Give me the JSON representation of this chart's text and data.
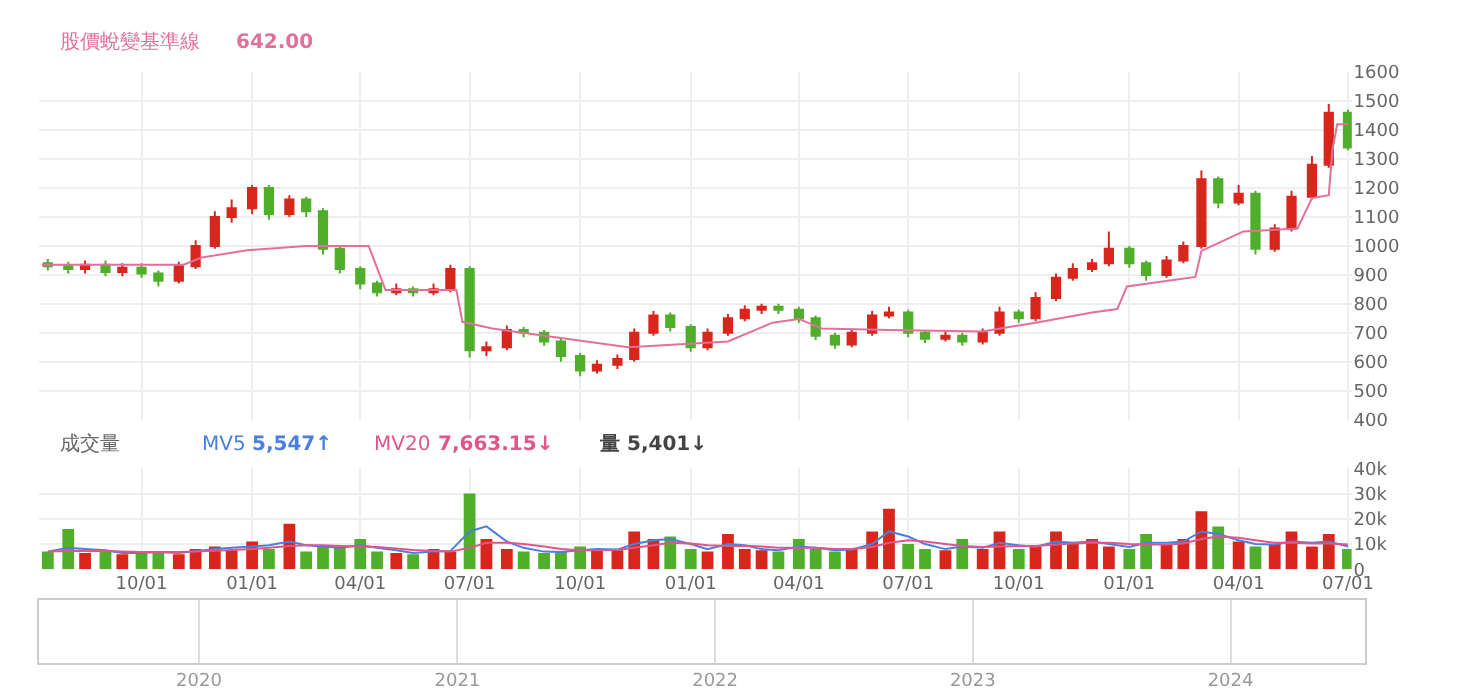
{
  "chart_data": [
    {
      "type": "candlestick",
      "tick_labels": "y",
      "grid": true,
      "legend": "top left",
      "xlim": [
        "2021-07-08",
        "2024-07-04"
      ],
      "xticks": [
        {
          "value": "2021-10-01",
          "label": null
        },
        {
          "value": "2022-01-01",
          "label": null
        },
        {
          "value": "2022-04-01",
          "label": null
        },
        {
          "value": "2022-07-01",
          "label": null
        },
        {
          "value": "2022-10-01",
          "label": null
        },
        {
          "value": "2023-01-01",
          "label": null
        },
        {
          "value": "2023-04-01",
          "label": null
        },
        {
          "value": "2023-07-01",
          "label": null
        },
        {
          "value": "2023-10-01",
          "label": null
        },
        {
          "value": "2024-01-01",
          "label": null
        },
        {
          "value": "2024-04-01",
          "label": null
        },
        {
          "value": "2024-07-01",
          "label": null
        }
      ],
      "ylim": [
        400,
        1600
      ],
      "yticks": [
        400,
        500,
        600,
        700,
        800,
        900,
        1000,
        1100,
        1200,
        1300,
        1400,
        1500,
        1600
      ],
      "x": [
        "2021-07-15",
        "2021-08-01",
        "2021-08-15",
        "2021-09-01",
        "2021-09-15",
        "2021-10-01",
        "2021-10-15",
        "2021-11-01",
        "2021-11-15",
        "2021-12-01",
        "2021-12-15",
        "2022-01-01",
        "2022-01-15",
        "2022-02-01",
        "2022-02-15",
        "2022-03-01",
        "2022-03-15",
        "2022-04-01",
        "2022-04-15",
        "2022-05-01",
        "2022-05-15",
        "2022-06-01",
        "2022-06-15",
        "2022-07-01",
        "2022-07-15",
        "2022-08-01",
        "2022-08-15",
        "2022-09-01",
        "2022-09-15",
        "2022-10-01",
        "2022-10-15",
        "2022-11-01",
        "2022-11-15",
        "2022-12-01",
        "2022-12-15",
        "2023-01-01",
        "2023-01-15",
        "2023-02-01",
        "2023-02-15",
        "2023-03-01",
        "2023-03-15",
        "2023-04-01",
        "2023-04-15",
        "2023-05-01",
        "2023-05-15",
        "2023-06-01",
        "2023-06-15",
        "2023-07-01",
        "2023-07-15",
        "2023-08-01",
        "2023-08-15",
        "2023-09-01",
        "2023-09-15",
        "2023-10-01",
        "2023-10-15",
        "2023-11-01",
        "2023-11-15",
        "2023-12-01",
        "2023-12-15",
        "2024-01-01",
        "2024-01-15",
        "2024-02-01",
        "2024-02-15",
        "2024-03-01",
        "2024-03-15",
        "2024-04-01",
        "2024-04-15",
        "2024-05-01",
        "2024-05-15",
        "2024-06-01",
        "2024-06-15",
        "2024-07-01"
      ],
      "ohlc": [
        [
          940,
          955,
          915,
          930
        ],
        [
          930,
          945,
          905,
          920
        ],
        [
          920,
          950,
          905,
          935
        ],
        [
          935,
          950,
          895,
          910
        ],
        [
          910,
          940,
          895,
          925
        ],
        [
          925,
          940,
          890,
          905
        ],
        [
          905,
          915,
          860,
          880
        ],
        [
          880,
          945,
          870,
          930
        ],
        [
          930,
          1020,
          920,
          1000
        ],
        [
          1000,
          1120,
          990,
          1100
        ],
        [
          1100,
          1160,
          1080,
          1130
        ],
        [
          1130,
          1210,
          1110,
          1200
        ],
        [
          1200,
          1210,
          1090,
          1110
        ],
        [
          1110,
          1175,
          1100,
          1160
        ],
        [
          1160,
          1170,
          1100,
          1120
        ],
        [
          1120,
          1130,
          970,
          990
        ],
        [
          990,
          1000,
          905,
          920
        ],
        [
          920,
          930,
          850,
          870
        ],
        [
          870,
          880,
          825,
          840
        ],
        [
          840,
          870,
          830,
          850
        ],
        [
          850,
          860,
          825,
          840
        ],
        [
          840,
          870,
          830,
          850
        ],
        [
          850,
          935,
          840,
          920
        ],
        [
          920,
          930,
          615,
          640
        ],
        [
          640,
          670,
          620,
          650
        ],
        [
          650,
          725,
          640,
          710
        ],
        [
          710,
          720,
          685,
          700
        ],
        [
          700,
          710,
          655,
          670
        ],
        [
          670,
          680,
          600,
          620
        ],
        [
          620,
          630,
          550,
          570
        ],
        [
          570,
          605,
          560,
          590
        ],
        [
          590,
          625,
          575,
          610
        ],
        [
          610,
          715,
          600,
          700
        ],
        [
          700,
          775,
          690,
          760
        ],
        [
          760,
          770,
          705,
          720
        ],
        [
          720,
          730,
          635,
          650
        ],
        [
          650,
          715,
          640,
          700
        ],
        [
          700,
          765,
          690,
          750
        ],
        [
          750,
          795,
          740,
          780
        ],
        [
          780,
          800,
          765,
          790
        ],
        [
          790,
          800,
          765,
          780
        ],
        [
          780,
          790,
          735,
          750
        ],
        [
          750,
          760,
          675,
          690
        ],
        [
          690,
          700,
          645,
          660
        ],
        [
          660,
          715,
          650,
          700
        ],
        [
          700,
          775,
          690,
          760
        ],
        [
          760,
          790,
          750,
          770
        ],
        [
          770,
          780,
          685,
          700
        ],
        [
          700,
          710,
          665,
          680
        ],
        [
          680,
          705,
          670,
          690
        ],
        [
          690,
          700,
          655,
          670
        ],
        [
          670,
          715,
          660,
          700
        ],
        [
          700,
          790,
          690,
          770
        ],
        [
          770,
          780,
          735,
          750
        ],
        [
          750,
          840,
          740,
          820
        ],
        [
          820,
          905,
          810,
          890
        ],
        [
          890,
          940,
          880,
          920
        ],
        [
          920,
          955,
          910,
          940
        ],
        [
          940,
          1050,
          930,
          990
        ],
        [
          990,
          1000,
          925,
          940
        ],
        [
          940,
          950,
          880,
          900
        ],
        [
          900,
          965,
          890,
          950
        ],
        [
          950,
          1015,
          940,
          1000
        ],
        [
          1000,
          1260,
          990,
          1230
        ],
        [
          1230,
          1240,
          1130,
          1150
        ],
        [
          1150,
          1210,
          1140,
          1180
        ],
        [
          1180,
          1190,
          970,
          990
        ],
        [
          990,
          1075,
          980,
          1060
        ],
        [
          1060,
          1190,
          1050,
          1170
        ],
        [
          1170,
          1310,
          1160,
          1280
        ],
        [
          1280,
          1490,
          1270,
          1460
        ],
        [
          1460,
          1470,
          1330,
          1340
        ]
      ],
      "colors": [
        "#4fae2a",
        "#4fae2a",
        "#d9261c",
        "#4fae2a",
        "#d9261c",
        "#4fae2a",
        "#4fae2a",
        "#d9261c",
        "#d9261c",
        "#d9261c",
        "#d9261c",
        "#d9261c",
        "#4fae2a",
        "#d9261c",
        "#4fae2a",
        "#4fae2a",
        "#4fae2a",
        "#4fae2a",
        "#4fae2a",
        "#d9261c",
        "#4fae2a",
        "#d9261c",
        "#d9261c",
        "#4fae2a",
        "#d9261c",
        "#d9261c",
        "#4fae2a",
        "#4fae2a",
        "#4fae2a",
        "#4fae2a",
        "#d9261c",
        "#d9261c",
        "#d9261c",
        "#d9261c",
        "#4fae2a",
        "#4fae2a",
        "#d9261c",
        "#d9261c",
        "#d9261c",
        "#d9261c",
        "#4fae2a",
        "#4fae2a",
        "#4fae2a",
        "#4fae2a",
        "#d9261c",
        "#d9261c",
        "#d9261c",
        "#4fae2a",
        "#4fae2a",
        "#d9261c",
        "#4fae2a",
        "#d9261c",
        "#d9261c",
        "#4fae2a",
        "#d9261c",
        "#d9261c",
        "#d9261c",
        "#d9261c",
        "#d9261c",
        "#4fae2a",
        "#4fae2a",
        "#d9261c",
        "#d9261c",
        "#d9261c",
        "#4fae2a",
        "#d9261c",
        "#4fae2a",
        "#d9261c",
        "#d9261c",
        "#d9261c",
        "#d9261c",
        "#4fae2a"
      ],
      "series": [
        {
          "type": "line",
          "name": "股價蛻變基準線",
          "color": "#e2709c",
          "x": [
            "2021-07-10",
            "2021-11-05",
            "2021-11-20",
            "2021-12-28",
            "2022-02-15",
            "2022-04-08",
            "2022-04-22",
            "2022-06-20",
            "2022-06-25",
            "2022-07-20",
            "2022-11-10",
            "2023-02-01",
            "2023-03-10",
            "2023-04-01",
            "2023-04-20",
            "2023-06-15",
            "2023-09-01",
            "2023-10-15",
            "2023-12-01",
            "2023-12-22",
            "2023-12-30",
            "2024-02-25",
            "2024-03-01",
            "2024-04-05",
            "2024-05-20",
            "2024-06-01",
            "2024-06-15",
            "2024-06-18",
            "2024-06-22",
            "2024-07-01"
          ],
          "values": [
            935,
            935,
            960,
            985,
            1000,
            1000,
            848,
            848,
            738,
            715,
            650,
            670,
            735,
            748,
            715,
            710,
            705,
            735,
            770,
            782,
            860,
            893,
            983,
            1050,
            1060,
            1165,
            1175,
            1330,
            1420,
            1420
          ]
        }
      ],
      "annotations": [
        "642.00"
      ]
    },
    {
      "type": "bar",
      "title": "成交量",
      "grid": true,
      "legend": "top left",
      "xlim": [
        "2021-07-08",
        "2024-07-04"
      ],
      "xticks": [
        {
          "value": "2021-10-01",
          "label": "10/01"
        },
        {
          "value": "2022-01-01",
          "label": "01/01"
        },
        {
          "value": "2022-04-01",
          "label": "04/01"
        },
        {
          "value": "2022-07-01",
          "label": "07/01"
        },
        {
          "value": "2022-10-01",
          "label": "10/01"
        },
        {
          "value": "2023-01-01",
          "label": "01/01"
        },
        {
          "value": "2023-04-01",
          "label": "04/01"
        },
        {
          "value": "2023-07-01",
          "label": "07/01"
        },
        {
          "value": "2023-10-01",
          "label": "10/01"
        },
        {
          "value": "2024-01-01",
          "label": "01/01"
        },
        {
          "value": "2024-04-01",
          "label": "04/01"
        },
        {
          "value": "2024-07-01",
          "label": "07/01"
        }
      ],
      "ylim": [
        0,
        40000
      ],
      "yticks": [
        0,
        {
          "value": 10000,
          "label": "10k"
        },
        {
          "value": 20000,
          "label": "20k"
        },
        {
          "value": 30000,
          "label": "30k"
        },
        {
          "value": 40000,
          "label": "40k"
        }
      ],
      "x": [
        "2021-07-15",
        "2021-08-01",
        "2021-08-15",
        "2021-09-01",
        "2021-09-15",
        "2021-10-01",
        "2021-10-15",
        "2021-11-01",
        "2021-11-15",
        "2021-12-01",
        "2021-12-15",
        "2022-01-01",
        "2022-01-15",
        "2022-02-01",
        "2022-02-15",
        "2022-03-01",
        "2022-03-15",
        "2022-04-01",
        "2022-04-15",
        "2022-05-01",
        "2022-05-15",
        "2022-06-01",
        "2022-06-15",
        "2022-07-01",
        "2022-07-15",
        "2022-08-01",
        "2022-08-15",
        "2022-09-01",
        "2022-09-15",
        "2022-10-01",
        "2022-10-15",
        "2022-11-01",
        "2022-11-15",
        "2022-12-01",
        "2022-12-15",
        "2023-01-01",
        "2023-01-15",
        "2023-02-01",
        "2023-02-15",
        "2023-03-01",
        "2023-03-15",
        "2023-04-01",
        "2023-04-15",
        "2023-05-01",
        "2023-05-15",
        "2023-06-01",
        "2023-06-15",
        "2023-07-01",
        "2023-07-15",
        "2023-08-01",
        "2023-08-15",
        "2023-09-01",
        "2023-09-15",
        "2023-10-01",
        "2023-10-15",
        "2023-11-01",
        "2023-11-15",
        "2023-12-01",
        "2023-12-15",
        "2024-01-01",
        "2024-01-15",
        "2024-02-01",
        "2024-02-15",
        "2024-03-01",
        "2024-03-15",
        "2024-04-01",
        "2024-04-15",
        "2024-05-01",
        "2024-05-15",
        "2024-06-01",
        "2024-06-15",
        "2024-07-01"
      ],
      "series": [
        {
          "type": "bar",
          "values": [
            7000,
            16000,
            6500,
            7000,
            6000,
            6500,
            7000,
            6000,
            8000,
            9000,
            7500,
            11000,
            8000,
            18000,
            7000,
            9000,
            8500,
            12000,
            7000,
            6500,
            6000,
            8000,
            7000,
            30000,
            12000,
            8000,
            7000,
            6500,
            7000,
            9000,
            8000,
            7500,
            15000,
            12000,
            13000,
            8000,
            7000,
            14000,
            8000,
            7500,
            7000,
            12000,
            8000,
            7000,
            8000,
            15000,
            24000,
            10000,
            8000,
            7500,
            12000,
            8000,
            15000,
            8000,
            9000,
            15000,
            10000,
            12000,
            9000,
            8000,
            14000,
            10000,
            12000,
            23000,
            17000,
            11000,
            9000,
            10000,
            15000,
            9000,
            14000,
            8000
          ],
          "colors": [
            "#4fae2a",
            "#4fae2a",
            "#d9261c",
            "#4fae2a",
            "#d9261c",
            "#4fae2a",
            "#4fae2a",
            "#d9261c",
            "#d9261c",
            "#d9261c",
            "#d9261c",
            "#d9261c",
            "#4fae2a",
            "#d9261c",
            "#4fae2a",
            "#4fae2a",
            "#4fae2a",
            "#4fae2a",
            "#4fae2a",
            "#d9261c",
            "#4fae2a",
            "#d9261c",
            "#d9261c",
            "#4fae2a",
            "#d9261c",
            "#d9261c",
            "#4fae2a",
            "#4fae2a",
            "#4fae2a",
            "#4fae2a",
            "#d9261c",
            "#d9261c",
            "#d9261c",
            "#d9261c",
            "#4fae2a",
            "#4fae2a",
            "#d9261c",
            "#d9261c",
            "#d9261c",
            "#d9261c",
            "#4fae2a",
            "#4fae2a",
            "#4fae2a",
            "#4fae2a",
            "#d9261c",
            "#d9261c",
            "#d9261c",
            "#4fae2a",
            "#4fae2a",
            "#d9261c",
            "#4fae2a",
            "#d9261c",
            "#d9261c",
            "#4fae2a",
            "#d9261c",
            "#d9261c",
            "#d9261c",
            "#d9261c",
            "#d9261c",
            "#4fae2a",
            "#4fae2a",
            "#d9261c",
            "#d9261c",
            "#d9261c",
            "#4fae2a",
            "#d9261c",
            "#4fae2a",
            "#d9261c",
            "#d9261c",
            "#d9261c",
            "#d9261c",
            "#4fae2a"
          ]
        },
        {
          "type": "line",
          "name": "MV5",
          "color": "#4a7fe0",
          "values": [
            7000,
            8500,
            8000,
            7500,
            6500,
            6500,
            6800,
            6500,
            7200,
            8000,
            8500,
            9000,
            9500,
            11000,
            9500,
            9000,
            8500,
            9500,
            8500,
            7500,
            6500,
            7000,
            7200,
            15000,
            17000,
            11000,
            8500,
            7000,
            6800,
            7500,
            8000,
            7800,
            10000,
            11500,
            12000,
            10000,
            8000,
            10000,
            9500,
            8000,
            7500,
            9000,
            8500,
            7500,
            7800,
            10000,
            15000,
            13000,
            10000,
            8000,
            9000,
            8500,
            10500,
            9500,
            8800,
            11000,
            10500,
            11000,
            10000,
            8800,
            10500,
            10500,
            11000,
            15000,
            14000,
            11500,
            10000,
            9800,
            11000,
            10500,
            11000,
            9000
          ]
        },
        {
          "type": "line",
          "name": "MV20",
          "color": "#e0568a",
          "values": [
            7000,
            7200,
            7300,
            7200,
            7000,
            6800,
            6800,
            6800,
            7000,
            7300,
            7600,
            8000,
            8500,
            9200,
            9500,
            9500,
            9200,
            9000,
            8800,
            8200,
            7600,
            7200,
            7000,
            8500,
            10500,
            10500,
            10000,
            9000,
            8000,
            7500,
            7500,
            7600,
            8500,
            9500,
            10500,
            10200,
            9500,
            9200,
            9300,
            9000,
            8500,
            8500,
            8500,
            8000,
            8000,
            8800,
            10500,
            11500,
            11000,
            10000,
            9200,
            8800,
            9000,
            9200,
            9200,
            9800,
            10200,
            10500,
            10500,
            10000,
            9800,
            9800,
            10200,
            12000,
            13000,
            12500,
            11500,
            10500,
            10500,
            10200,
            10200,
            9800
          ]
        }
      ],
      "x2lim": [
        "2019-05-20",
        "2024-07-10"
      ],
      "x2ticks": [
        {
          "value": "2020-01-01",
          "label": "2020"
        },
        {
          "value": "2021-01-01",
          "label": "2021"
        },
        {
          "value": "2022-01-01",
          "label": "2022"
        },
        {
          "value": "2023-01-01",
          "label": "2023"
        },
        {
          "value": "2024-01-01",
          "label": "2024"
        }
      ],
      "annotations": [
        "5,547↑",
        "7,663.15↓",
        "量 5,401↓"
      ]
    }
  ]
}
